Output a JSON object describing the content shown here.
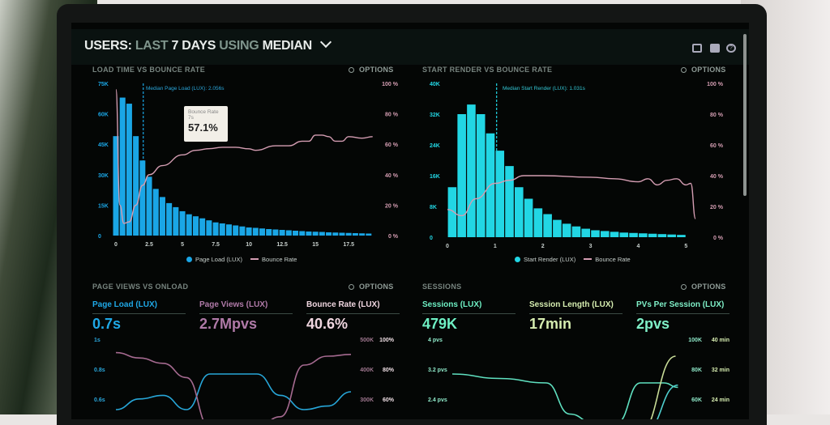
{
  "header": {
    "title_prefix": "USERS:",
    "title_mid1": "LAST",
    "title_days": "7 DAYS",
    "title_mid2": "USING",
    "title_mode": "MEDIAN",
    "icons": [
      "monitor-icon",
      "image-icon",
      "help-icon"
    ]
  },
  "options_label": "OPTIONS",
  "colors": {
    "bar_blue": "#1aa6e6",
    "bar_cyan": "#22d6e4",
    "bounce": "#d49db2",
    "teal": "#3fe0c0",
    "sessionlen": "#c8e6a0"
  },
  "panels": {
    "load_time": {
      "title": "LOAD TIME VS BOUNCE RATE",
      "median_label": "Median Page Load (LUX): 2.056s",
      "tooltip": {
        "label": "Bounce Rate",
        "sub": "7s",
        "value": "57.1%"
      },
      "legend": [
        "Page Load (LUX)",
        "Bounce Rate"
      ],
      "chart": {
        "type": "bar+line",
        "xlim": [
          0,
          19.5
        ],
        "x_ticks": [
          "0",
          "2.5",
          "5",
          "7.5",
          "10",
          "12.5",
          "15",
          "17.5"
        ],
        "x_tick_values": [
          0,
          2.5,
          5,
          7.5,
          10,
          12.5,
          15,
          17.5
        ],
        "ylim": [
          0,
          75000
        ],
        "y_ticks": [
          "0",
          "15K",
          "30K",
          "45K",
          "60K",
          "75K"
        ],
        "y2lim": [
          0,
          100
        ],
        "y2_ticks": [
          "0 %",
          "20 %",
          "40 %",
          "60 %",
          "80 %",
          "100 %"
        ],
        "median": 2.056,
        "bar_width": 0.5,
        "bars_x": [
          0,
          0.5,
          1,
          1.5,
          2,
          2.5,
          3,
          3.5,
          4,
          4.5,
          5,
          5.5,
          6,
          6.5,
          7,
          7.5,
          8,
          8.5,
          9,
          9.5,
          10,
          10.5,
          11,
          11.5,
          12,
          12.5,
          13,
          13.5,
          14,
          14.5,
          15,
          15.5,
          16,
          16.5,
          17,
          17.5,
          18,
          18.5,
          19
        ],
        "bars_y": [
          49000,
          68000,
          65000,
          49000,
          37000,
          29000,
          23000,
          19000,
          16000,
          14000,
          12000,
          10500,
          9500,
          8500,
          7500,
          6500,
          6000,
          5500,
          5000,
          4500,
          4000,
          3800,
          3500,
          3200,
          3000,
          2800,
          2600,
          2400,
          2200,
          2000,
          1900,
          1800,
          1600,
          1500,
          1400,
          1300,
          1200,
          1100,
          1000
        ],
        "bounce_x": [
          0,
          0.3,
          0.6,
          1,
          1.5,
          2,
          2.5,
          3.5,
          5,
          6,
          7,
          8,
          9,
          10,
          10.5,
          12,
          13,
          14,
          14.5,
          15,
          15.5,
          16,
          16.5,
          17,
          17.5,
          18.5,
          19.3
        ],
        "bounce_y": [
          96,
          20,
          8,
          9,
          20,
          33,
          40,
          46,
          53,
          56,
          57.1,
          58,
          58,
          57,
          56,
          59,
          59,
          62,
          62,
          66,
          66,
          65,
          62,
          62,
          65,
          64,
          65
        ]
      }
    },
    "start_render": {
      "title": "START RENDER VS BOUNCE RATE",
      "median_label": "Median Start Render (LUX): 1.031s",
      "legend": [
        "Start Render (LUX)",
        "Bounce Rate"
      ],
      "chart": {
        "type": "bar+line",
        "xlim": [
          0,
          5.3
        ],
        "x_ticks": [
          "0",
          "1",
          "2",
          "3",
          "4",
          "5"
        ],
        "x_tick_values": [
          0,
          1,
          2,
          3,
          4,
          5
        ],
        "ylim": [
          0,
          40000
        ],
        "y_ticks": [
          "0",
          "8K",
          "16K",
          "24K",
          "32K",
          "40K"
        ],
        "y2lim": [
          0,
          100
        ],
        "y2_ticks": [
          "0 %",
          "20 %",
          "40 %",
          "60 %",
          "80 %",
          "100 %"
        ],
        "median": 1.031,
        "bar_width": 0.2,
        "bars_x": [
          0.1,
          0.3,
          0.5,
          0.7,
          0.9,
          1.1,
          1.3,
          1.5,
          1.7,
          1.9,
          2.1,
          2.3,
          2.5,
          2.7,
          2.9,
          3.1,
          3.3,
          3.5,
          3.7,
          3.9,
          4.1,
          4.3,
          4.5,
          4.7,
          4.9
        ],
        "bars_y": [
          13000,
          32000,
          34500,
          32000,
          27000,
          22500,
          18500,
          13000,
          10000,
          7500,
          6000,
          4500,
          3500,
          2800,
          2200,
          1800,
          1600,
          1400,
          1200,
          1100,
          1000,
          900,
          800,
          700,
          600
        ],
        "bounce_x": [
          0,
          0.3,
          0.6,
          1,
          1.3,
          1.6,
          2,
          3,
          3.5,
          4,
          4.2,
          4.4,
          4.6,
          4.8,
          5,
          5.1,
          5.2
        ],
        "bounce_y": [
          18,
          14,
          25,
          35,
          37,
          40,
          40,
          39,
          38,
          36,
          38,
          34,
          37,
          38,
          34,
          35,
          12
        ]
      }
    },
    "page_views": {
      "title": "PAGE VIEWS VS ONLOAD",
      "metrics": [
        {
          "label": "Page Load (LUX)",
          "value": "0.7s",
          "color": "#1fa8e6"
        },
        {
          "label": "Page Views (LUX)",
          "value": "2.7Mpvs",
          "color": "#b07aa8"
        },
        {
          "label": "Bounce Rate (LUX)",
          "value": "40.6%",
          "color": "#f0d6e0"
        }
      ],
      "chart": {
        "left_ticks": [
          "1s",
          "0.8s",
          "0.6s"
        ],
        "right_ticks_a": [
          "500K",
          "400K",
          "300K"
        ],
        "right_ticks_b": [
          "100%",
          "80%",
          "60%"
        ],
        "ylim": [
          0.5,
          1.0
        ],
        "series": [
          {
            "color": "#27a6d8",
            "x": [
              0,
              1,
              2,
              3,
              4,
              5,
              6,
              7,
              8,
              9,
              10
            ],
            "y": [
              0.6,
              0.66,
              0.68,
              0.6,
              0.8,
              0.8,
              0.8,
              0.68,
              0.6,
              0.62,
              0.7
            ]
          },
          {
            "color": "#a56a90",
            "x": [
              0,
              1,
              2,
              3,
              4,
              5,
              6,
              7,
              8,
              9,
              10
            ],
            "y": [
              0.92,
              0.89,
              0.86,
              0.78,
              0.5,
              0.5,
              0.5,
              0.56,
              0.85,
              0.9,
              0.91
            ]
          }
        ]
      }
    },
    "sessions": {
      "title": "SESSIONS",
      "metrics": [
        {
          "label": "Sessions (LUX)",
          "value": "479K",
          "color": "#6ef0c4"
        },
        {
          "label": "Session Length (LUX)",
          "value": "17min",
          "color": "#d6edb0"
        },
        {
          "label": "PVs Per Session (LUX)",
          "value": "2pvs",
          "color": "#7ff0c8"
        }
      ],
      "chart": {
        "left_ticks": [
          "4 pvs",
          "3.2 pvs",
          "2.4 pvs"
        ],
        "right_ticks_a": [
          "100K",
          "80K",
          "60K"
        ],
        "right_ticks_b": [
          "40 min",
          "32 min",
          "24 min"
        ],
        "ylim": [
          2.0,
          4.0
        ],
        "series": [
          {
            "color": "#5fe0c0",
            "x": [
              0,
              2,
              4,
              5,
              6,
              7,
              8,
              9,
              9.6
            ],
            "y": [
              3.2,
              3.1,
              3.0,
              2.3,
              2.1,
              2.1,
              3.0,
              3.0,
              2.9
            ]
          },
          {
            "color": "#c9dd98",
            "x": [
              8,
              9.5
            ],
            "y": [
              1.9,
              3.6
            ]
          },
          {
            "color": "#4fd0d0",
            "x": [
              8.2,
              9.6
            ],
            "y": [
              1.9,
              2.95
            ]
          }
        ]
      }
    }
  }
}
